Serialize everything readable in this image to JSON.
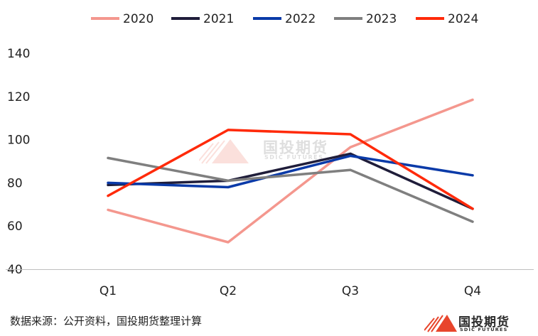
{
  "chart_data": {
    "type": "line",
    "title": "",
    "xlabel": "",
    "ylabel": "",
    "categories": [
      "Q1",
      "Q2",
      "Q3",
      "Q4"
    ],
    "ylim": [
      40,
      140
    ],
    "yticks": [
      "40",
      "60",
      "80",
      "100",
      "120",
      "140"
    ],
    "grid": false,
    "legend": "top",
    "series": [
      {
        "name": "2020",
        "color": "#F4978E",
        "values": [
          67.5,
          52.5,
          96.5,
          118.5
        ]
      },
      {
        "name": "2021",
        "color": "#1F1D3A",
        "values": [
          79.0,
          81.0,
          93.5,
          68.0
        ]
      },
      {
        "name": "2022",
        "color": "#0A3AA8",
        "values": [
          80.0,
          78.0,
          92.5,
          83.5
        ]
      },
      {
        "name": "2023",
        "color": "#7F7F7F",
        "values": [
          91.5,
          81.0,
          86.0,
          62.0
        ]
      },
      {
        "name": "2024",
        "color": "#FF2A0A",
        "values": [
          74.0,
          104.5,
          102.5,
          68.0
        ]
      }
    ]
  },
  "source_note": "数据来源：公开资料，国投期货整理计算",
  "logo": {
    "name": "国投期货",
    "subtitle": "SDIC FUTURES",
    "colors": {
      "red": "#E8452C",
      "dark": "#2a2a2a"
    }
  },
  "watermark": {
    "name": "国投期货",
    "subtitle": "SDIC FUTURES"
  }
}
